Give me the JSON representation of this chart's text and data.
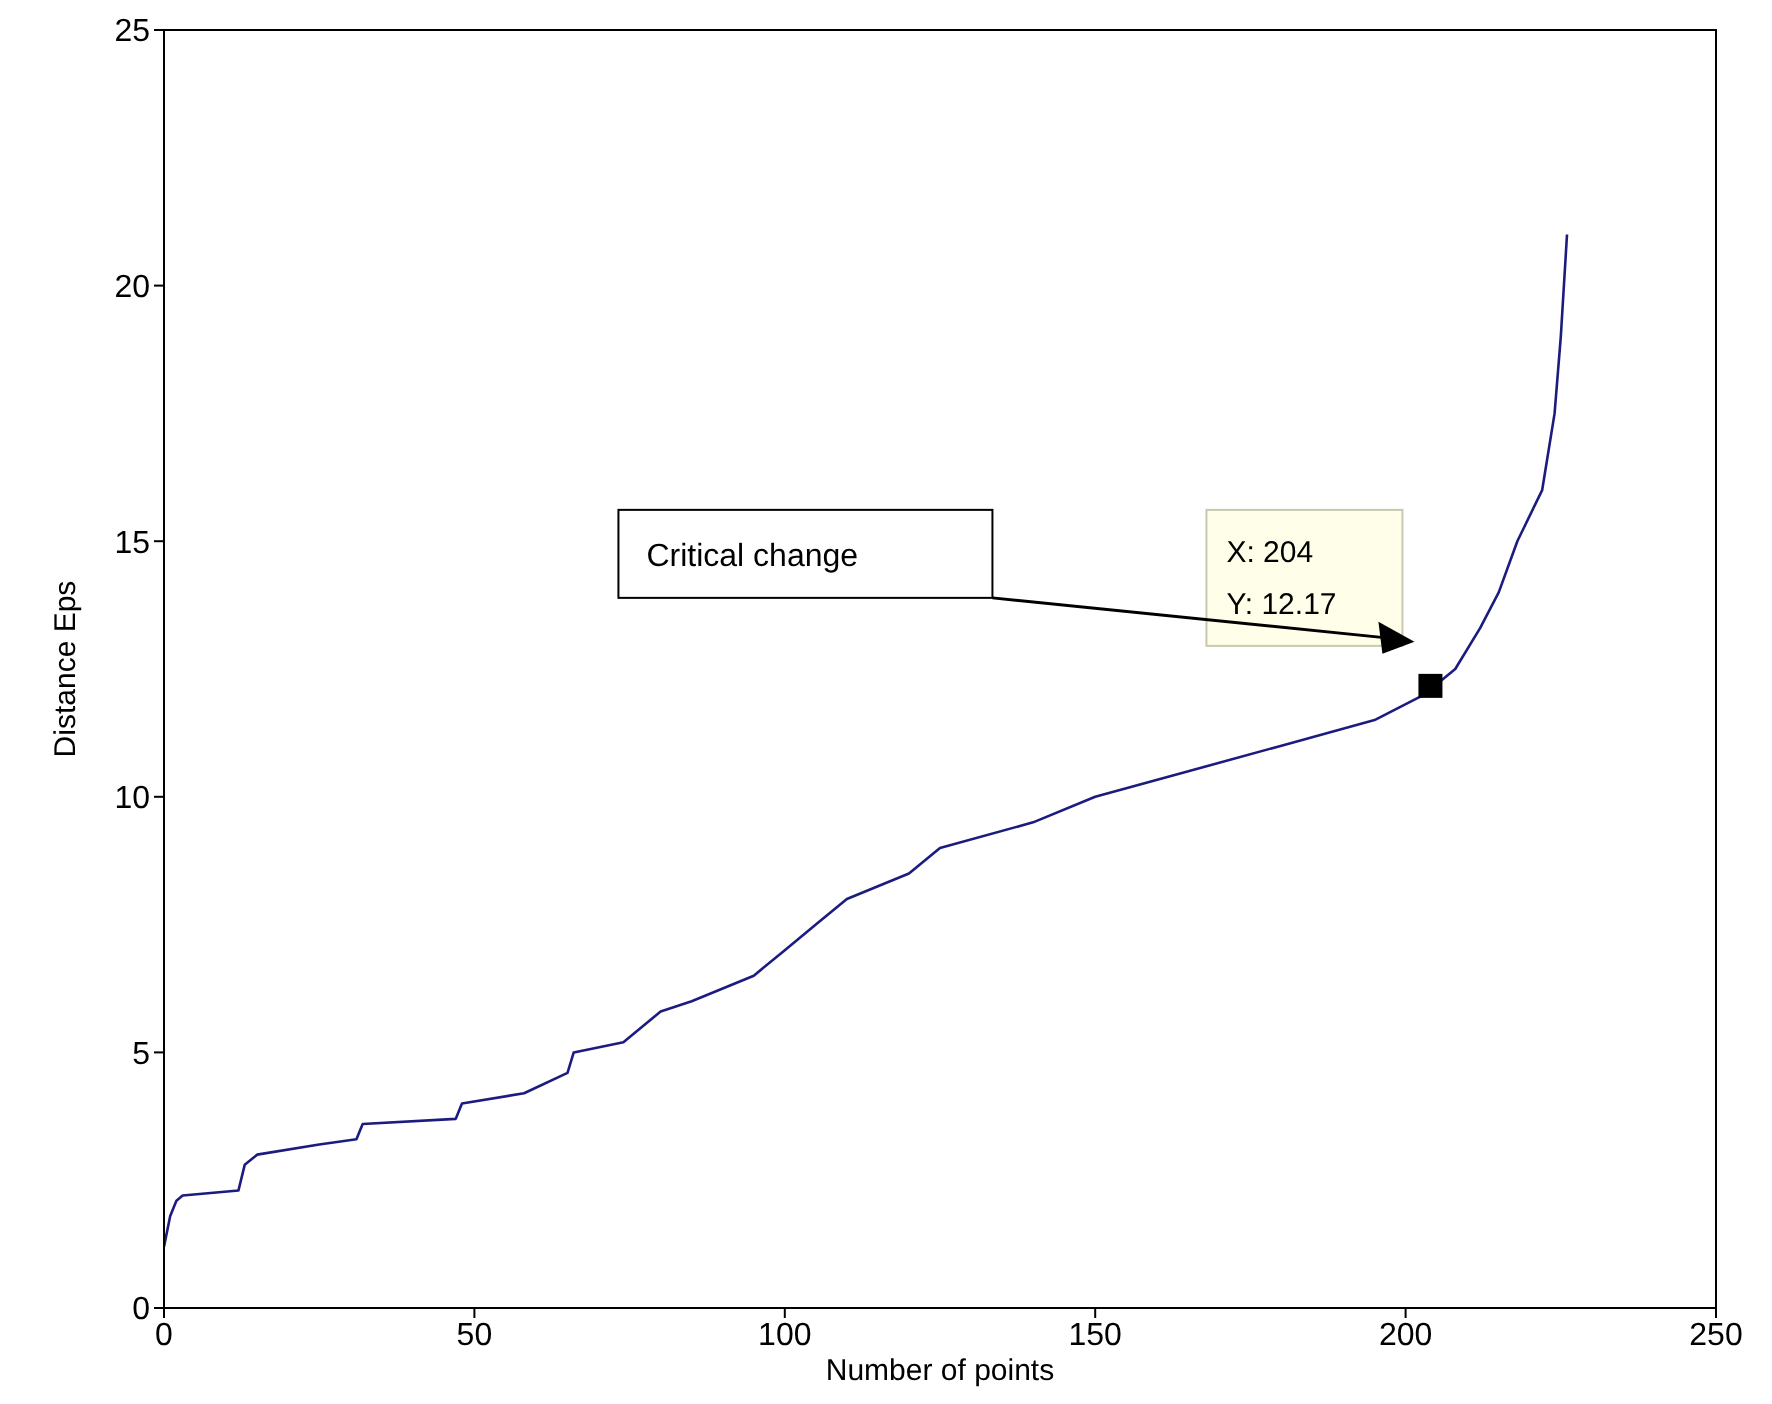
{
  "chart_data": {
    "type": "line",
    "xlabel": "Number of points",
    "ylabel": "Distance Eps",
    "xlim": [
      0,
      250
    ],
    "ylim": [
      0,
      25
    ],
    "xticks": [
      0,
      50,
      100,
      150,
      200,
      250
    ],
    "yticks": [
      0,
      5,
      10,
      15,
      20,
      25
    ],
    "grid": false,
    "annotations": [
      "Critical change",
      "X: 204",
      "Y: 12.17"
    ],
    "series": [
      {
        "color": "#1c1c80",
        "marker": "none",
        "line_style": "solid",
        "x": [
          0,
          1,
          2,
          3,
          12,
          13,
          15,
          25,
          31,
          32,
          47,
          48,
          58,
          65,
          66,
          74,
          80,
          85,
          95,
          100,
          105,
          110,
          120,
          125,
          140,
          150,
          165,
          180,
          195,
          203,
          208,
          212,
          215,
          218,
          222,
          224,
          225,
          226
        ],
        "values": [
          1.2,
          1.8,
          2.1,
          2.2,
          2.3,
          2.8,
          3.0,
          3.2,
          3.3,
          3.6,
          3.7,
          4.0,
          4.2,
          4.6,
          5.0,
          5.2,
          5.8,
          6.0,
          6.5,
          7.0,
          7.5,
          8.0,
          8.5,
          9.0,
          9.5,
          10.0,
          10.5,
          11.0,
          11.5,
          12.0,
          12.5,
          13.3,
          14,
          15,
          16,
          17.5,
          19,
          21
        ]
      },
      {
        "type": "scatter",
        "color": "#000000",
        "marker": "square",
        "x": [
          204
        ],
        "values": [
          12.17
        ]
      }
    ]
  }
}
